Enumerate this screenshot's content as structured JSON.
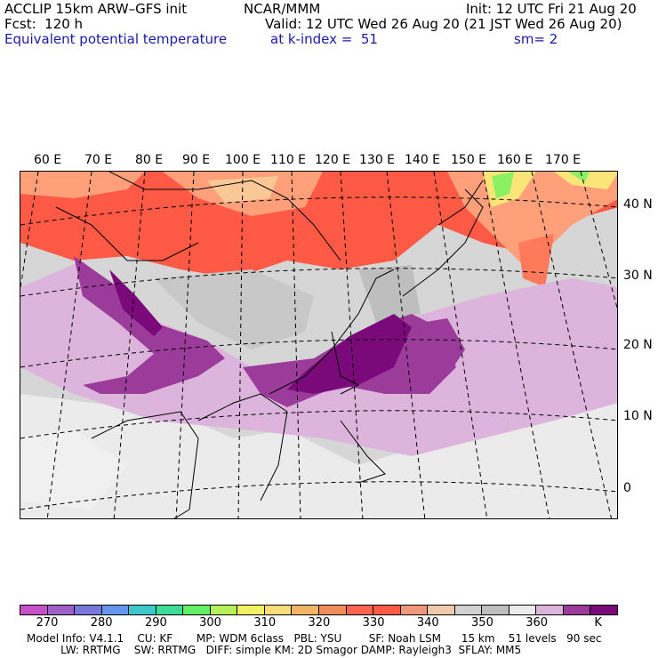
{
  "header": {
    "line1_left": "ACCLIP 15km ARW–GFS init",
    "line1_center": "NCAR/MMM",
    "line1_right": "Init: 12 UTC Fri 21 Aug 20",
    "line2_left": "Fcst:  120 h",
    "line2_right": "Valid: 12 UTC Wed 26 Aug 20 (21 JST Wed 26 Aug 20)",
    "line3_left": "Equivalent potential temperature",
    "line3_center": "at k-index =  51",
    "line3_right": "sm= 2"
  },
  "map": {
    "lon_labels": [
      "60 E",
      "70 E",
      "80 E",
      "90 E",
      "100 E",
      "110 E",
      "120 E",
      "130 E",
      "140 E",
      "150 E",
      "160 E",
      "170 E"
    ],
    "lat_labels": [
      "40 N",
      "30 N",
      "20 N",
      "10 N",
      "0"
    ],
    "colors": {
      "background_gray": "#d6d6d6",
      "purple_light": "#dcb4dc",
      "purple_mid": "#9b3c9b",
      "purple_dark": "#7a0a7a",
      "red": "#ff5a46",
      "orange": "#ffa07a",
      "yellow": "#fae678",
      "green": "#8cf064"
    }
  },
  "colorbar": {
    "colors": [
      "#c850c8",
      "#a060c8",
      "#7878dc",
      "#6496f0",
      "#3cc8c8",
      "#3cdc96",
      "#64f064",
      "#b4f05a",
      "#f0f064",
      "#fadc78",
      "#f0b464",
      "#f08c5a",
      "#ff6450",
      "#ff5a46",
      "#f0967a",
      "#f0c8aa",
      "#d2d2d2",
      "#bebebe",
      "#ebebeb",
      "#dcb4dc",
      "#9b3c9b",
      "#7a0a7a"
    ],
    "labels": [
      "270",
      "280",
      "290",
      "300",
      "310",
      "320",
      "330",
      "340",
      "350",
      "360",
      "K"
    ],
    "label_positions_index": [
      1,
      3,
      5,
      7,
      9,
      11,
      13,
      15,
      17,
      19,
      21
    ]
  },
  "footer": {
    "line1": "Model Info: V4.1.1    CU: KF       MP: WDM 6class   PBL: YSU        SF: Noah LSM      15 km    51 levels   90 sec",
    "line2": "          LW: RRTMG    SW: RRTMG   DIFF: simple KM: 2D Smagor DAMP: Rayleigh3  SFLAY: MM5"
  }
}
